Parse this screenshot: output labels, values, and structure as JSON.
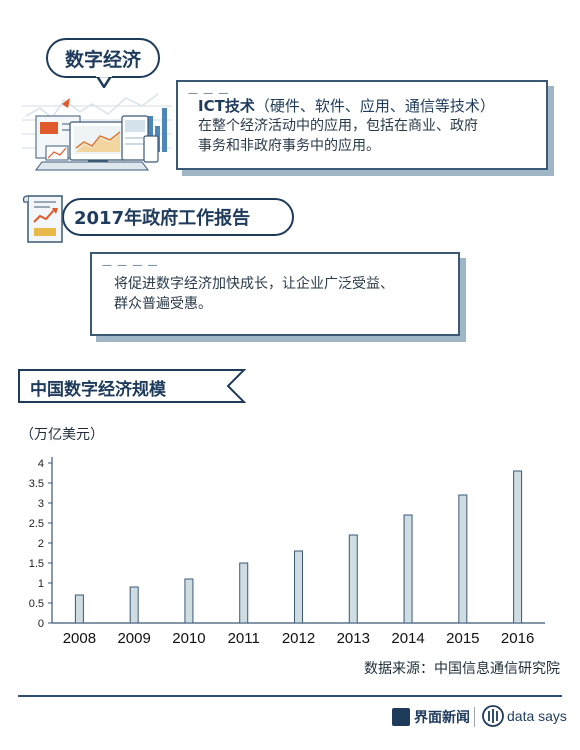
{
  "intro": {
    "bubble_title": "数字经济",
    "card_title": "ICT技术",
    "card_title_suffix": "（硬件、软件、应用、通信等技术）",
    "card_body_1": "在整个经济活动中的应用，包括在商业、政府",
    "card_body_2": "事务和非政府事务中的应用。"
  },
  "report": {
    "bubble_title": "2017年政府工作报告",
    "card_body_1": "将促进数字经济加快成长，让企业广泛受益、",
    "card_body_2": "群众普遍受惠。"
  },
  "section": {
    "title": "中国数字经济规模",
    "unit": "（万亿美元）"
  },
  "chart_data": {
    "type": "bar",
    "title": "中国数字经济规模",
    "ylabel": "（万亿美元）",
    "categories": [
      "2008",
      "2009",
      "2010",
      "2011",
      "2012",
      "2013",
      "2014",
      "2015",
      "2016"
    ],
    "values": [
      0.7,
      0.9,
      1.1,
      1.5,
      1.8,
      2.2,
      2.7,
      3.2,
      3.8
    ],
    "ylim": [
      0,
      4
    ],
    "yticks": [
      "0",
      "0.5",
      "1",
      "1.5",
      "2",
      "2.5",
      "3",
      "3.5",
      "4"
    ],
    "grid": false,
    "bar_color": "#cfdde3",
    "bar_border": "#3b5874"
  },
  "source": "数据来源：中国信息通信研究院",
  "footer": {
    "brand1": "界面新闻",
    "brand2": "data says",
    "accent": "#1f3b5c"
  }
}
